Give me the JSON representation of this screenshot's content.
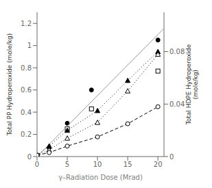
{
  "chart_data": {
    "type": "scatter",
    "xlabel": "γ–Radiation Dose (Mrad)",
    "ylabel": "Total PP Hydroperoxide (mole/kg)",
    "y2label": "Total HDPE Hydroperoxide\n(mole/kg)",
    "xlim": [
      0,
      21
    ],
    "xticks": [
      0,
      5,
      10,
      15,
      20
    ],
    "ylim": [
      0,
      1.3
    ],
    "yticks": [
      0,
      0.2,
      0.4,
      0.6,
      0.8,
      1.0,
      1.2
    ],
    "y2lim": [
      0,
      0.11
    ],
    "y2ticks": [
      0,
      0.04,
      0.08
    ],
    "grid": false,
    "series": [
      {
        "type": "scatter",
        "marker": "filled_circle",
        "color": "#000000",
        "axis": "y",
        "x": [
          0,
          2,
          5,
          9,
          20
        ],
        "values": [
          0.01,
          0.08,
          0.3,
          0.6,
          1.05
        ]
      },
      {
        "type": "scatter",
        "marker": "open_square",
        "color": "#000000",
        "axis": "y",
        "x": [
          0,
          5,
          9,
          20
        ],
        "values": [
          0.01,
          0.25,
          0.43,
          0.77
        ]
      },
      {
        "type": "line",
        "line_style": "solid",
        "color": "#999999",
        "axis": "y",
        "x": [
          0,
          21
        ],
        "values": [
          0.0,
          1.155
        ]
      },
      {
        "type": "line",
        "marker": "filled_triangle",
        "line_style": "dotted",
        "color": "#000000",
        "axis": "y2",
        "x": [
          0,
          2,
          5,
          10,
          15,
          20
        ],
        "values": [
          0.001,
          0.008,
          0.02,
          0.035,
          0.058,
          0.08
        ]
      },
      {
        "type": "line",
        "marker": "open_triangle",
        "line_style": "dotted",
        "color": "#000000",
        "axis": "y2",
        "x": [
          0,
          2,
          5,
          10,
          15,
          20
        ],
        "values": [
          0.001,
          0.005,
          0.014,
          0.026,
          0.05,
          0.078
        ]
      },
      {
        "type": "line",
        "marker": "open_circle",
        "line_style": "dashed",
        "color": "#000000",
        "axis": "y2",
        "x": [
          0,
          2,
          5,
          10,
          15,
          20
        ],
        "values": [
          0.001,
          0.003,
          0.008,
          0.015,
          0.025,
          0.038
        ]
      }
    ]
  }
}
